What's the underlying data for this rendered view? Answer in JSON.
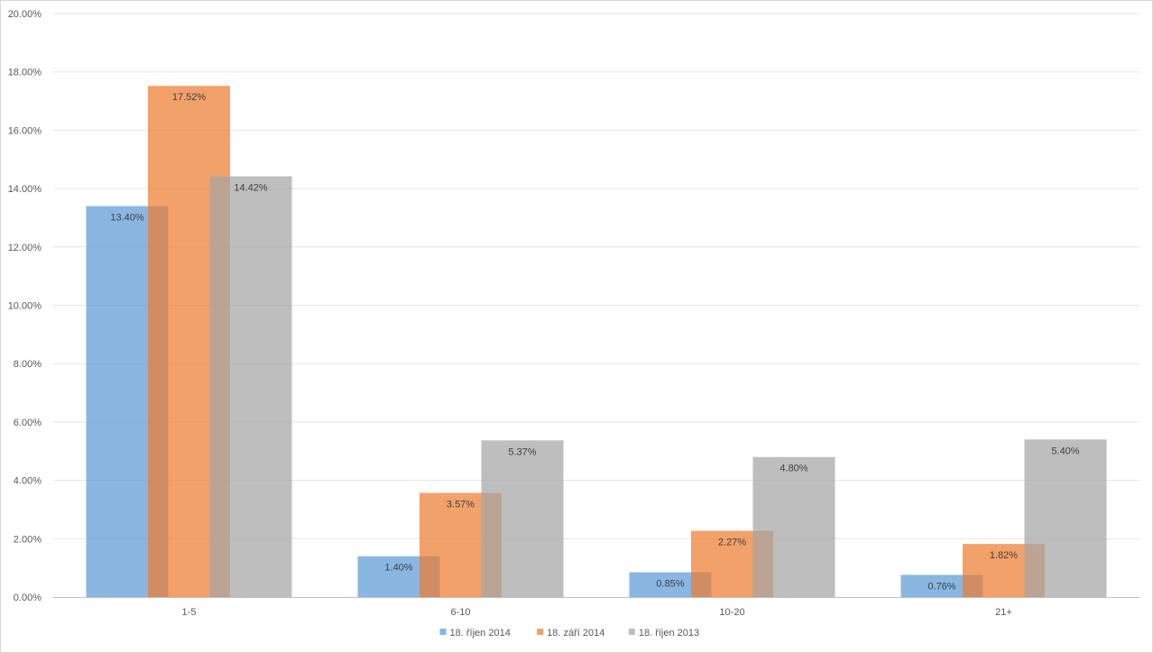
{
  "chart_data": {
    "type": "bar",
    "title": "",
    "xlabel": "",
    "ylabel": "",
    "categories": [
      "1-5",
      "6-10",
      "10-20",
      "21+"
    ],
    "ylim": [
      0,
      20
    ],
    "ytick_step": 2,
    "ytick_labels": [
      "0.00%",
      "2.00%",
      "4.00%",
      "6.00%",
      "8.00%",
      "10.00%",
      "12.00%",
      "14.00%",
      "16.00%",
      "18.00%",
      "20.00%"
    ],
    "grid": true,
    "legend_position": "bottom",
    "series": [
      {
        "name": "18. říjen 2014",
        "color": "#5B9BD5",
        "values": [
          13.4,
          1.4,
          0.85,
          0.76
        ],
        "labels": [
          "13.40%",
          "1.40%",
          "0.85%",
          "0.76%"
        ]
      },
      {
        "name": "18. září 2014",
        "color": "#ED7D31",
        "values": [
          17.52,
          3.57,
          2.27,
          1.82
        ],
        "labels": [
          "17.52%",
          "3.57%",
          "2.27%",
          "1.82%"
        ]
      },
      {
        "name": "18. říjen 2013",
        "color": "#A5A5A5",
        "values": [
          14.42,
          5.37,
          4.8,
          5.4
        ],
        "labels": [
          "14.42%",
          "5.37%",
          "4.80%",
          "5.40%"
        ]
      }
    ]
  }
}
